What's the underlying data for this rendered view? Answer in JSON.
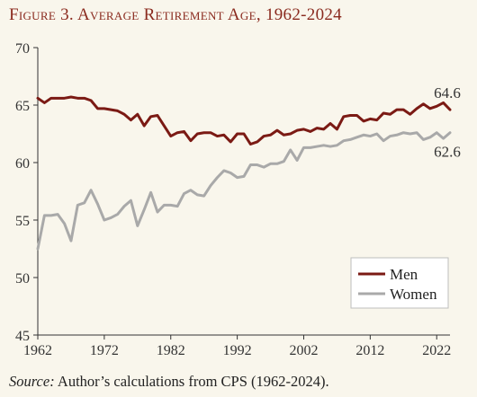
{
  "title": "Figure 3. Average Retirement Age, 1962-2024",
  "source": {
    "label": "Source:",
    "text": "Author’s calculations from CPS (1962-2024)."
  },
  "colors": {
    "men": "#7b1a14",
    "women": "#a9a9a9",
    "axis": "#333333",
    "title": "#8a2a1e"
  },
  "chart_data": {
    "type": "line",
    "xlim": [
      1962,
      2024
    ],
    "ylim": [
      45,
      70
    ],
    "xticks": [
      1962,
      1972,
      1982,
      1992,
      2002,
      2012,
      2022
    ],
    "yticks": [
      45,
      50,
      55,
      60,
      65,
      70
    ],
    "grid": false,
    "legend_position": "bottom-right",
    "end_labels": [
      {
        "series": "Men",
        "text": "64.6"
      },
      {
        "series": "Women",
        "text": "62.6"
      }
    ],
    "x": [
      1962,
      1963,
      1964,
      1965,
      1966,
      1967,
      1968,
      1969,
      1970,
      1971,
      1972,
      1973,
      1974,
      1975,
      1976,
      1977,
      1978,
      1979,
      1980,
      1981,
      1982,
      1983,
      1984,
      1985,
      1986,
      1987,
      1988,
      1989,
      1990,
      1991,
      1992,
      1993,
      1994,
      1995,
      1996,
      1997,
      1998,
      1999,
      2000,
      2001,
      2002,
      2003,
      2004,
      2005,
      2006,
      2007,
      2008,
      2009,
      2010,
      2011,
      2012,
      2013,
      2014,
      2015,
      2016,
      2017,
      2018,
      2019,
      2020,
      2021,
      2022,
      2023,
      2024
    ],
    "series": [
      {
        "name": "Men",
        "values": [
          65.6,
          65.2,
          65.6,
          65.6,
          65.6,
          65.7,
          65.6,
          65.6,
          65.4,
          64.7,
          64.7,
          64.6,
          64.5,
          64.2,
          63.7,
          64.2,
          63.2,
          64.0,
          64.1,
          63.2,
          62.3,
          62.6,
          62.7,
          61.9,
          62.5,
          62.6,
          62.6,
          62.3,
          62.4,
          61.8,
          62.5,
          62.5,
          61.6,
          61.8,
          62.3,
          62.4,
          62.8,
          62.4,
          62.5,
          62.8,
          62.9,
          62.7,
          63.0,
          62.9,
          63.4,
          62.9,
          64.0,
          64.1,
          64.1,
          63.6,
          63.8,
          63.7,
          64.3,
          64.2,
          64.6,
          64.6,
          64.2,
          64.7,
          65.1,
          64.7,
          64.9,
          65.2,
          64.6
        ]
      },
      {
        "name": "Women",
        "values": [
          52.5,
          55.4,
          55.4,
          55.5,
          54.7,
          53.2,
          56.3,
          56.5,
          57.6,
          56.4,
          55.0,
          55.2,
          55.5,
          56.2,
          56.7,
          54.5,
          55.9,
          57.4,
          55.7,
          56.3,
          56.3,
          56.2,
          57.3,
          57.6,
          57.2,
          57.1,
          58.0,
          58.7,
          59.3,
          59.1,
          58.7,
          58.8,
          59.8,
          59.8,
          59.6,
          59.9,
          59.9,
          60.1,
          61.1,
          60.2,
          61.3,
          61.3,
          61.4,
          61.5,
          61.4,
          61.5,
          61.9,
          62.0,
          62.2,
          62.4,
          62.3,
          62.5,
          61.9,
          62.3,
          62.4,
          62.6,
          62.5,
          62.6,
          62.0,
          62.2,
          62.6,
          62.1,
          62.6
        ]
      }
    ]
  }
}
